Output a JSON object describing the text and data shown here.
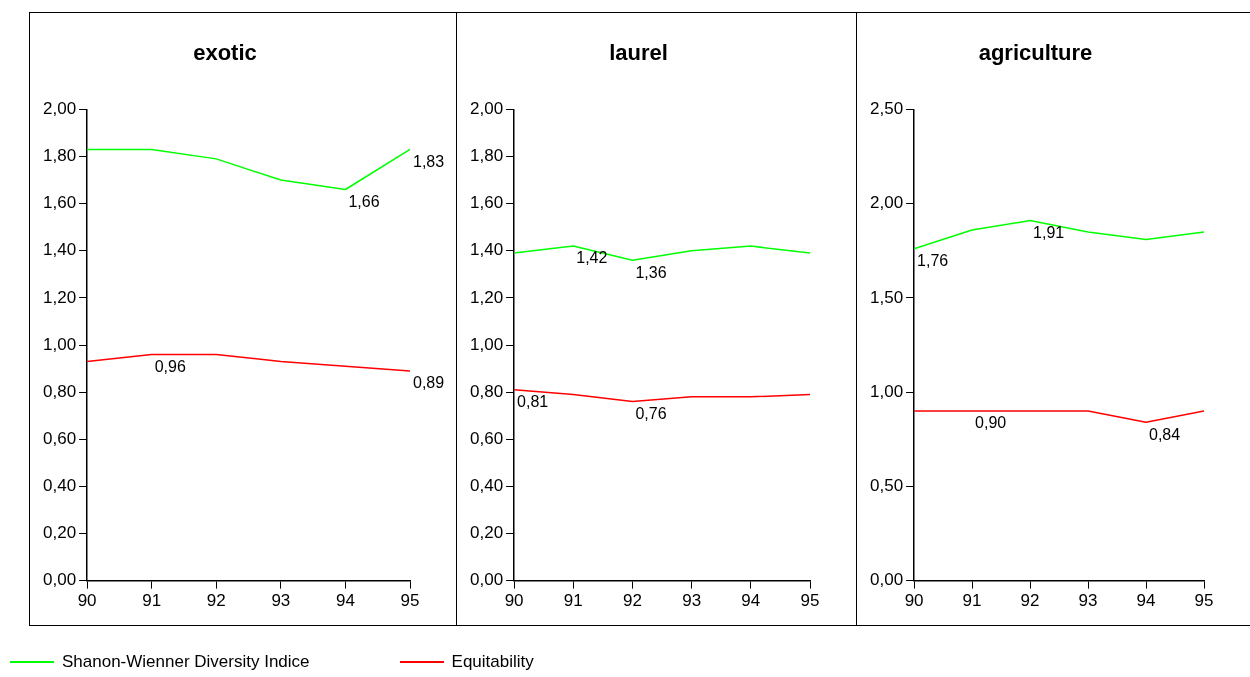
{
  "chart_data": [
    {
      "type": "line",
      "title": "exotic",
      "x": [
        90,
        91,
        92,
        93,
        94,
        95
      ],
      "xlim": [
        90,
        95
      ],
      "xticks": [
        90,
        91,
        92,
        93,
        94,
        95
      ],
      "ylim": [
        0,
        2
      ],
      "yticks": [
        {
          "value": 0,
          "label": "0,00"
        },
        {
          "value": 0.2,
          "label": "0,20"
        },
        {
          "value": 0.4,
          "label": "0,40"
        },
        {
          "value": 0.6,
          "label": "0,60"
        },
        {
          "value": 0.8,
          "label": "0,80"
        },
        {
          "value": 1,
          "label": "1,00"
        },
        {
          "value": 1.2,
          "label": "1,20"
        },
        {
          "value": 1.4,
          "label": "1,40"
        },
        {
          "value": 1.6,
          "label": "1,60"
        },
        {
          "value": 1.8,
          "label": "1,80"
        },
        {
          "value": 2,
          "label": "2,00"
        }
      ],
      "grid": false,
      "marker": "none",
      "legend": "bottom",
      "series": [
        {
          "name": "Shanon-Wienner Diversity Indice",
          "color": "#00ff00",
          "values": [
            1.83,
            1.83,
            1.79,
            1.7,
            1.66,
            1.83
          ],
          "value_labels": [
            null,
            null,
            null,
            null,
            "1,66",
            "1,83"
          ]
        },
        {
          "name": "Equitability",
          "color": "#ff0000",
          "values": [
            0.93,
            0.96,
            0.96,
            0.93,
            0.91,
            0.89
          ],
          "value_labels": [
            null,
            "0,96",
            null,
            null,
            null,
            "0,89"
          ]
        }
      ]
    },
    {
      "type": "line",
      "title": "laurel",
      "x": [
        90,
        91,
        92,
        93,
        94,
        95
      ],
      "xlim": [
        90,
        95
      ],
      "xticks": [
        90,
        91,
        92,
        93,
        94,
        95
      ],
      "ylim": [
        0,
        2
      ],
      "yticks": [
        {
          "value": 0,
          "label": "0,00"
        },
        {
          "value": 0.2,
          "label": "0,20"
        },
        {
          "value": 0.4,
          "label": "0,40"
        },
        {
          "value": 0.6,
          "label": "0,60"
        },
        {
          "value": 0.8,
          "label": "0,80"
        },
        {
          "value": 1,
          "label": "1,00"
        },
        {
          "value": 1.2,
          "label": "1,20"
        },
        {
          "value": 1.4,
          "label": "1,40"
        },
        {
          "value": 1.6,
          "label": "1,60"
        },
        {
          "value": 1.8,
          "label": "1,80"
        },
        {
          "value": 2,
          "label": "2,00"
        }
      ],
      "grid": false,
      "marker": "none",
      "series": [
        {
          "color": "#00ff00",
          "values": [
            1.39,
            1.42,
            1.36,
            1.4,
            1.42,
            1.39
          ],
          "value_labels": [
            null,
            "1,42",
            "1,36",
            null,
            null,
            null
          ]
        },
        {
          "color": "#ff0000",
          "values": [
            0.81,
            0.79,
            0.76,
            0.78,
            0.78,
            0.79
          ],
          "value_labels": [
            "0,81",
            null,
            "0,76",
            null,
            null,
            null
          ]
        }
      ]
    },
    {
      "type": "line",
      "title": "agriculture",
      "x": [
        90,
        91,
        92,
        93,
        94,
        95
      ],
      "xlim": [
        90,
        95
      ],
      "xticks": [
        90,
        91,
        92,
        93,
        94,
        95
      ],
      "ylim": [
        0,
        2.5
      ],
      "yticks": [
        {
          "value": 0,
          "label": "0,00"
        },
        {
          "value": 0.5,
          "label": "0,50"
        },
        {
          "value": 1,
          "label": "1,00"
        },
        {
          "value": 1.5,
          "label": "1,50"
        },
        {
          "value": 2,
          "label": "2,00"
        },
        {
          "value": 2.5,
          "label": "2,50"
        }
      ],
      "grid": false,
      "marker": "none",
      "series": [
        {
          "color": "#00ff00",
          "values": [
            1.76,
            1.86,
            1.91,
            1.85,
            1.81,
            1.85
          ],
          "value_labels": [
            "1,76",
            null,
            "1,91",
            null,
            null,
            null
          ]
        },
        {
          "color": "#ff0000",
          "values": [
            0.9,
            0.9,
            0.9,
            0.9,
            0.84,
            0.9
          ],
          "value_labels": [
            null,
            "0,90",
            null,
            null,
            "0,84",
            null
          ]
        }
      ]
    }
  ]
}
